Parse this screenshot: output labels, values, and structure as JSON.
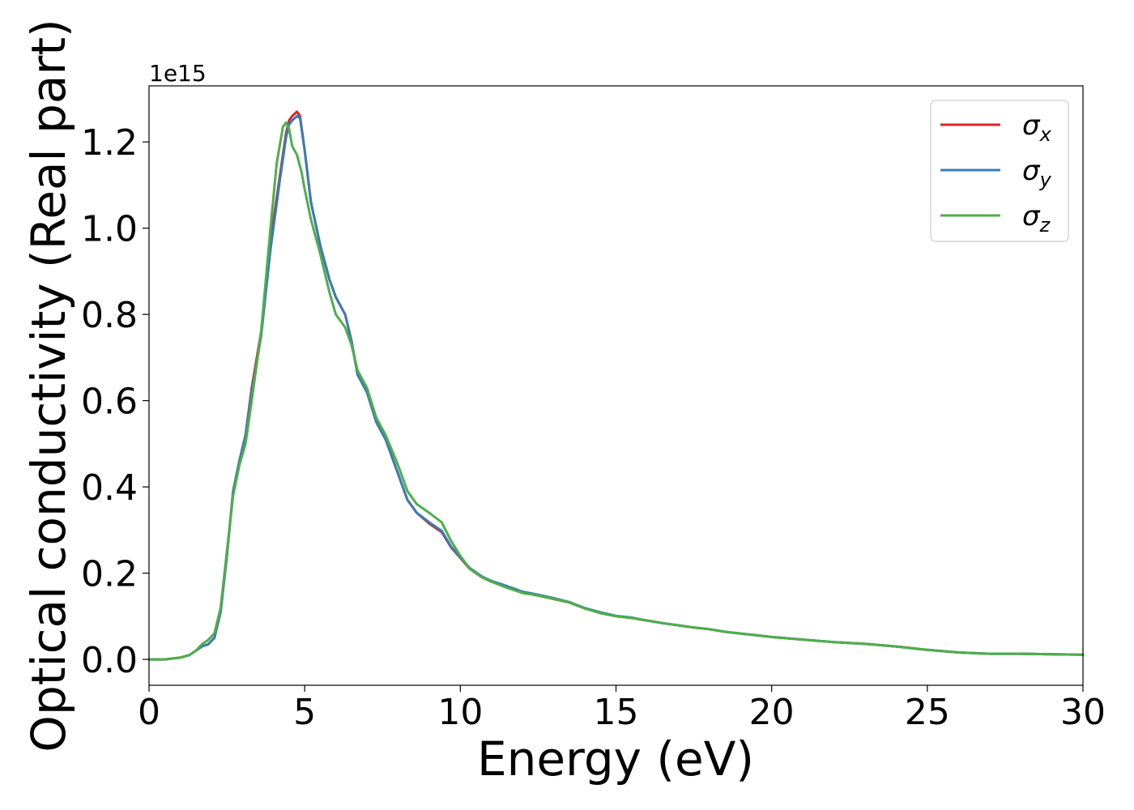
{
  "chart_data": {
    "type": "line",
    "title": "",
    "xlabel": "Energy (eV)",
    "ylabel": "Optical conductivity (Real part)",
    "y_offset_text": "1e15",
    "xlim": [
      0,
      30
    ],
    "ylim": [
      -0.06,
      1.33
    ],
    "xticks": [
      0,
      5,
      10,
      15,
      20,
      25,
      30
    ],
    "yticks": [
      0.0,
      0.2,
      0.4,
      0.6,
      0.8,
      1.0,
      1.2
    ],
    "xtick_labels": [
      "0",
      "5",
      "10",
      "15",
      "20",
      "25",
      "30"
    ],
    "ytick_labels": [
      "0.0",
      "0.2",
      "0.4",
      "0.6",
      "0.8",
      "1.0",
      "1.2"
    ],
    "grid": false,
    "legend_position": "top-right",
    "series": [
      {
        "name": "σx",
        "name_base": "σ",
        "name_sub": "x",
        "color": "#d62728",
        "points": [
          [
            0,
            0.0
          ],
          [
            0.5,
            0.0
          ],
          [
            1.0,
            0.004
          ],
          [
            1.3,
            0.01
          ],
          [
            1.5,
            0.02
          ],
          [
            1.7,
            0.03
          ],
          [
            1.9,
            0.035
          ],
          [
            2.1,
            0.05
          ],
          [
            2.3,
            0.11
          ],
          [
            2.5,
            0.24
          ],
          [
            2.7,
            0.39
          ],
          [
            2.9,
            0.46
          ],
          [
            3.1,
            0.52
          ],
          [
            3.3,
            0.63
          ],
          [
            3.6,
            0.76
          ],
          [
            3.9,
            0.97
          ],
          [
            4.2,
            1.12
          ],
          [
            4.4,
            1.22
          ],
          [
            4.5,
            1.25
          ],
          [
            4.6,
            1.26
          ],
          [
            4.75,
            1.27
          ],
          [
            4.85,
            1.26
          ],
          [
            5.0,
            1.18
          ],
          [
            5.2,
            1.06
          ],
          [
            5.5,
            0.96
          ],
          [
            5.8,
            0.88
          ],
          [
            6.0,
            0.84
          ],
          [
            6.3,
            0.8
          ],
          [
            6.5,
            0.74
          ],
          [
            6.7,
            0.66
          ],
          [
            7.0,
            0.62
          ],
          [
            7.3,
            0.55
          ],
          [
            7.6,
            0.51
          ],
          [
            8.0,
            0.43
          ],
          [
            8.3,
            0.37
          ],
          [
            8.6,
            0.34
          ],
          [
            9.0,
            0.315
          ],
          [
            9.4,
            0.295
          ],
          [
            9.7,
            0.26
          ],
          [
            10.0,
            0.235
          ],
          [
            10.3,
            0.21
          ],
          [
            10.7,
            0.19
          ],
          [
            11.0,
            0.18
          ],
          [
            11.5,
            0.168
          ],
          [
            12.0,
            0.155
          ],
          [
            12.5,
            0.148
          ],
          [
            13.0,
            0.14
          ],
          [
            13.5,
            0.132
          ],
          [
            14.0,
            0.118
          ],
          [
            14.5,
            0.108
          ],
          [
            15.0,
            0.1
          ],
          [
            15.5,
            0.096
          ],
          [
            16.0,
            0.09
          ],
          [
            16.5,
            0.084
          ],
          [
            17.0,
            0.079
          ],
          [
            17.5,
            0.074
          ],
          [
            18.0,
            0.07
          ],
          [
            18.5,
            0.064
          ],
          [
            19.0,
            0.06
          ],
          [
            19.5,
            0.056
          ],
          [
            20.0,
            0.052
          ],
          [
            21.0,
            0.046
          ],
          [
            22.0,
            0.04
          ],
          [
            23.0,
            0.036
          ],
          [
            24.0,
            0.03
          ],
          [
            25.0,
            0.022
          ],
          [
            26.0,
            0.016
          ],
          [
            27.0,
            0.013
          ],
          [
            28.0,
            0.013
          ],
          [
            29.0,
            0.012
          ],
          [
            30.0,
            0.011
          ]
        ]
      },
      {
        "name": "σy",
        "name_base": "σ",
        "name_sub": "y",
        "color": "#3a7bb8",
        "points": [
          [
            0,
            0.0
          ],
          [
            0.5,
            0.0
          ],
          [
            1.0,
            0.004
          ],
          [
            1.3,
            0.01
          ],
          [
            1.5,
            0.02
          ],
          [
            1.7,
            0.03
          ],
          [
            1.9,
            0.035
          ],
          [
            2.1,
            0.05
          ],
          [
            2.3,
            0.11
          ],
          [
            2.5,
            0.24
          ],
          [
            2.7,
            0.39
          ],
          [
            2.9,
            0.46
          ],
          [
            3.1,
            0.52
          ],
          [
            3.3,
            0.62
          ],
          [
            3.6,
            0.75
          ],
          [
            3.9,
            0.95
          ],
          [
            4.2,
            1.11
          ],
          [
            4.4,
            1.21
          ],
          [
            4.5,
            1.24
          ],
          [
            4.6,
            1.25
          ],
          [
            4.75,
            1.26
          ],
          [
            4.85,
            1.255
          ],
          [
            5.0,
            1.18
          ],
          [
            5.2,
            1.06
          ],
          [
            5.5,
            0.96
          ],
          [
            5.8,
            0.88
          ],
          [
            6.0,
            0.84
          ],
          [
            6.3,
            0.8
          ],
          [
            6.5,
            0.74
          ],
          [
            6.7,
            0.66
          ],
          [
            7.0,
            0.62
          ],
          [
            7.3,
            0.55
          ],
          [
            7.6,
            0.51
          ],
          [
            8.0,
            0.43
          ],
          [
            8.3,
            0.37
          ],
          [
            8.6,
            0.34
          ],
          [
            9.0,
            0.318
          ],
          [
            9.4,
            0.298
          ],
          [
            9.7,
            0.262
          ],
          [
            10.0,
            0.236
          ],
          [
            10.3,
            0.212
          ],
          [
            10.7,
            0.192
          ],
          [
            11.0,
            0.182
          ],
          [
            11.5,
            0.17
          ],
          [
            12.0,
            0.157
          ],
          [
            12.5,
            0.15
          ],
          [
            13.0,
            0.142
          ],
          [
            13.5,
            0.133
          ],
          [
            14.0,
            0.119
          ],
          [
            14.5,
            0.109
          ],
          [
            15.0,
            0.101
          ],
          [
            15.5,
            0.097
          ],
          [
            16.0,
            0.09
          ],
          [
            16.5,
            0.084
          ],
          [
            17.0,
            0.079
          ],
          [
            17.5,
            0.074
          ],
          [
            18.0,
            0.07
          ],
          [
            18.5,
            0.064
          ],
          [
            19.0,
            0.06
          ],
          [
            19.5,
            0.056
          ],
          [
            20.0,
            0.052
          ],
          [
            21.0,
            0.046
          ],
          [
            22.0,
            0.04
          ],
          [
            23.0,
            0.036
          ],
          [
            24.0,
            0.03
          ],
          [
            25.0,
            0.022
          ],
          [
            26.0,
            0.016
          ],
          [
            27.0,
            0.013
          ],
          [
            28.0,
            0.013
          ],
          [
            29.0,
            0.012
          ],
          [
            30.0,
            0.011
          ]
        ]
      },
      {
        "name": "σz",
        "name_base": "σ",
        "name_sub": "z",
        "color": "#4daf4a",
        "points": [
          [
            0,
            0.0
          ],
          [
            0.5,
            0.0
          ],
          [
            1.0,
            0.004
          ],
          [
            1.3,
            0.01
          ],
          [
            1.5,
            0.02
          ],
          [
            1.7,
            0.035
          ],
          [
            1.9,
            0.045
          ],
          [
            2.1,
            0.06
          ],
          [
            2.3,
            0.12
          ],
          [
            2.5,
            0.25
          ],
          [
            2.7,
            0.38
          ],
          [
            2.9,
            0.45
          ],
          [
            3.1,
            0.5
          ],
          [
            3.3,
            0.6
          ],
          [
            3.6,
            0.76
          ],
          [
            3.9,
            1.0
          ],
          [
            4.1,
            1.15
          ],
          [
            4.3,
            1.235
          ],
          [
            4.4,
            1.245
          ],
          [
            4.5,
            1.23
          ],
          [
            4.6,
            1.19
          ],
          [
            4.75,
            1.17
          ],
          [
            4.9,
            1.13
          ],
          [
            5.0,
            1.09
          ],
          [
            5.2,
            1.02
          ],
          [
            5.5,
            0.94
          ],
          [
            5.8,
            0.85
          ],
          [
            6.0,
            0.8
          ],
          [
            6.3,
            0.77
          ],
          [
            6.5,
            0.73
          ],
          [
            6.7,
            0.67
          ],
          [
            7.0,
            0.63
          ],
          [
            7.3,
            0.56
          ],
          [
            7.6,
            0.52
          ],
          [
            8.0,
            0.45
          ],
          [
            8.3,
            0.39
          ],
          [
            8.6,
            0.36
          ],
          [
            9.0,
            0.34
          ],
          [
            9.4,
            0.318
          ],
          [
            9.7,
            0.275
          ],
          [
            10.0,
            0.24
          ],
          [
            10.3,
            0.21
          ],
          [
            10.7,
            0.19
          ],
          [
            11.0,
            0.18
          ],
          [
            11.5,
            0.166
          ],
          [
            12.0,
            0.154
          ],
          [
            12.5,
            0.148
          ],
          [
            13.0,
            0.14
          ],
          [
            13.5,
            0.132
          ],
          [
            14.0,
            0.118
          ],
          [
            14.5,
            0.107
          ],
          [
            15.0,
            0.1
          ],
          [
            15.5,
            0.096
          ],
          [
            16.0,
            0.09
          ],
          [
            16.5,
            0.084
          ],
          [
            17.0,
            0.079
          ],
          [
            17.5,
            0.074
          ],
          [
            18.0,
            0.07
          ],
          [
            18.5,
            0.064
          ],
          [
            19.0,
            0.06
          ],
          [
            19.5,
            0.056
          ],
          [
            20.0,
            0.052
          ],
          [
            21.0,
            0.046
          ],
          [
            22.0,
            0.04
          ],
          [
            23.0,
            0.036
          ],
          [
            24.0,
            0.03
          ],
          [
            25.0,
            0.022
          ],
          [
            26.0,
            0.016
          ],
          [
            27.0,
            0.013
          ],
          [
            28.0,
            0.013
          ],
          [
            29.0,
            0.012
          ],
          [
            30.0,
            0.011
          ]
        ]
      }
    ]
  }
}
